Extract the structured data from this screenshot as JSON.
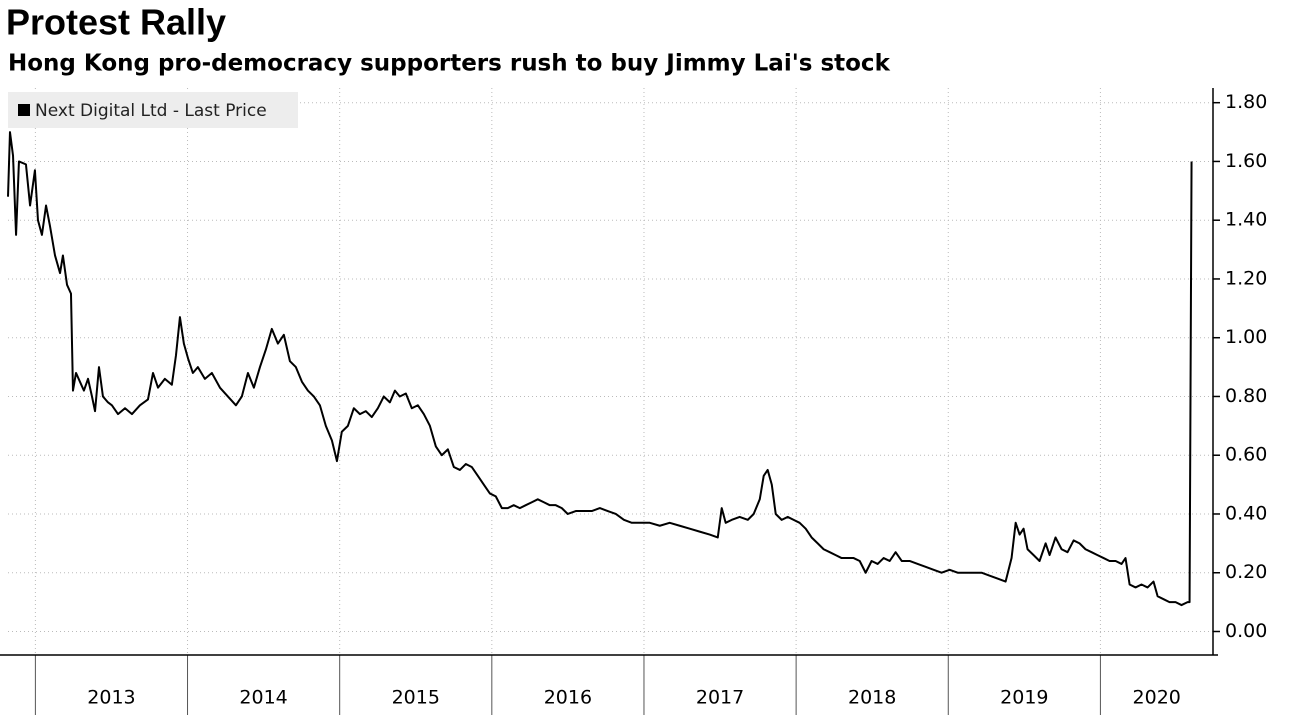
{
  "chart_data": {
    "type": "line",
    "title": "Protest Rally",
    "subtitle": "Hong Kong pro-democracy supporters rush to buy Jimmy Lai's stock",
    "x": [
      2012.82,
      2012.833,
      2012.853,
      2012.873,
      2012.892,
      2012.938,
      2012.965,
      2012.997,
      2013.017,
      2013.043,
      2013.07,
      2013.096,
      2013.129,
      2013.162,
      2013.181,
      2013.208,
      2013.234,
      2013.247,
      2013.267,
      2013.293,
      2013.319,
      2013.346,
      2013.372,
      2013.392,
      2013.418,
      2013.444,
      2013.477,
      2013.503,
      2013.543,
      2013.589,
      2013.635,
      2013.687,
      2013.74,
      2013.773,
      2013.806,
      2013.851,
      2013.897,
      2013.924,
      2013.95,
      2013.976,
      2014.003,
      2014.035,
      2014.068,
      2014.114,
      2014.16,
      2014.213,
      2014.265,
      2014.318,
      2014.357,
      2014.397,
      2014.436,
      2014.476,
      2014.515,
      2014.554,
      2014.594,
      2014.633,
      2014.673,
      2014.712,
      2014.752,
      2014.791,
      2014.83,
      2014.87,
      2014.909,
      2014.949,
      2014.982,
      2015.014,
      2015.054,
      2015.093,
      2015.133,
      2015.172,
      2015.211,
      2015.251,
      2015.29,
      2015.33,
      2015.363,
      2015.395,
      2015.435,
      2015.474,
      2015.514,
      2015.553,
      2015.593,
      2015.632,
      2015.671,
      2015.711,
      2015.75,
      2015.79,
      2015.829,
      2015.868,
      2015.908,
      2015.947,
      2015.987,
      2016.026,
      2016.066,
      2016.105,
      2016.144,
      2016.184,
      2016.223,
      2016.263,
      2016.302,
      2016.342,
      2016.381,
      2016.42,
      2016.46,
      2016.499,
      2016.552,
      2016.604,
      2016.657,
      2016.71,
      2016.762,
      2016.815,
      2016.868,
      2016.92,
      2016.973,
      2017.038,
      2017.104,
      2017.169,
      2017.235,
      2017.301,
      2017.366,
      2017.432,
      2017.485,
      2017.511,
      2017.537,
      2017.577,
      2017.629,
      2017.682,
      2017.721,
      2017.761,
      2017.787,
      2017.813,
      2017.84,
      2017.866,
      2017.905,
      2017.945,
      2017.984,
      2018.023,
      2018.063,
      2018.102,
      2018.142,
      2018.181,
      2018.221,
      2018.26,
      2018.299,
      2018.339,
      2018.378,
      2018.418,
      2018.457,
      2018.496,
      2018.536,
      2018.575,
      2018.615,
      2018.654,
      2018.694,
      2018.746,
      2018.799,
      2018.851,
      2018.904,
      2018.956,
      2019.009,
      2019.062,
      2019.114,
      2019.167,
      2019.219,
      2019.272,
      2019.324,
      2019.377,
      2019.416,
      2019.443,
      2019.469,
      2019.495,
      2019.521,
      2019.561,
      2019.6,
      2019.64,
      2019.666,
      2019.705,
      2019.745,
      2019.784,
      2019.824,
      2019.863,
      2019.902,
      2019.942,
      2019.981,
      2020.021,
      2020.06,
      2020.1,
      2020.139,
      2020.165,
      2020.192,
      2020.231,
      2020.27,
      2020.31,
      2020.349,
      2020.376,
      2020.415,
      2020.454,
      2020.494,
      2020.533,
      2020.573,
      2020.586,
      2020.599
    ],
    "series": [
      {
        "name": "Next Digital Ltd - Last Price",
        "color": "#000000",
        "values": [
          1.48,
          1.7,
          1.62,
          1.35,
          1.6,
          1.59,
          1.45,
          1.57,
          1.4,
          1.35,
          1.45,
          1.38,
          1.28,
          1.22,
          1.28,
          1.18,
          1.15,
          0.82,
          0.88,
          0.85,
          0.82,
          0.86,
          0.8,
          0.75,
          0.9,
          0.8,
          0.78,
          0.77,
          0.74,
          0.76,
          0.74,
          0.77,
          0.79,
          0.88,
          0.83,
          0.86,
          0.84,
          0.94,
          1.07,
          0.98,
          0.93,
          0.88,
          0.9,
          0.86,
          0.88,
          0.83,
          0.8,
          0.77,
          0.8,
          0.88,
          0.83,
          0.9,
          0.96,
          1.03,
          0.98,
          1.01,
          0.92,
          0.9,
          0.85,
          0.82,
          0.8,
          0.77,
          0.7,
          0.65,
          0.58,
          0.68,
          0.7,
          0.76,
          0.74,
          0.75,
          0.73,
          0.76,
          0.8,
          0.78,
          0.82,
          0.8,
          0.81,
          0.76,
          0.77,
          0.74,
          0.7,
          0.63,
          0.6,
          0.62,
          0.56,
          0.55,
          0.57,
          0.56,
          0.53,
          0.5,
          0.47,
          0.46,
          0.42,
          0.42,
          0.43,
          0.42,
          0.43,
          0.44,
          0.45,
          0.44,
          0.43,
          0.43,
          0.42,
          0.4,
          0.41,
          0.41,
          0.41,
          0.42,
          0.41,
          0.4,
          0.38,
          0.37,
          0.37,
          0.37,
          0.36,
          0.37,
          0.36,
          0.35,
          0.34,
          0.33,
          0.32,
          0.42,
          0.37,
          0.38,
          0.39,
          0.38,
          0.4,
          0.45,
          0.53,
          0.55,
          0.5,
          0.4,
          0.38,
          0.39,
          0.38,
          0.37,
          0.35,
          0.32,
          0.3,
          0.28,
          0.27,
          0.26,
          0.25,
          0.25,
          0.25,
          0.24,
          0.2,
          0.24,
          0.23,
          0.25,
          0.24,
          0.27,
          0.24,
          0.24,
          0.23,
          0.22,
          0.21,
          0.2,
          0.21,
          0.2,
          0.2,
          0.2,
          0.2,
          0.19,
          0.18,
          0.17,
          0.25,
          0.37,
          0.33,
          0.35,
          0.28,
          0.26,
          0.24,
          0.3,
          0.26,
          0.32,
          0.28,
          0.27,
          0.31,
          0.3,
          0.28,
          0.27,
          0.26,
          0.25,
          0.24,
          0.24,
          0.23,
          0.25,
          0.16,
          0.15,
          0.16,
          0.15,
          0.17,
          0.12,
          0.11,
          0.1,
          0.1,
          0.09,
          0.1,
          0.1,
          1.6
        ]
      }
    ],
    "xlim": [
      2012.82,
      2020.74
    ],
    "xticks": [
      {
        "value": 2013,
        "label": "2013"
      },
      {
        "value": 2014,
        "label": "2014"
      },
      {
        "value": 2015,
        "label": "2015"
      },
      {
        "value": 2016,
        "label": "2016"
      },
      {
        "value": 2017,
        "label": "2017"
      },
      {
        "value": 2018,
        "label": "2018"
      },
      {
        "value": 2019,
        "label": "2019"
      },
      {
        "value": 2020,
        "label": "2020"
      }
    ],
    "ylim": [
      -0.08,
      1.85
    ],
    "yticks": [
      {
        "value": 0,
        "label": "0.00"
      },
      {
        "value": 0.2,
        "label": "0.20"
      },
      {
        "value": 0.4,
        "label": "0.40"
      },
      {
        "value": 0.6,
        "label": "0.60"
      },
      {
        "value": 0.8,
        "label": "0.80"
      },
      {
        "value": 1,
        "label": "1.00"
      },
      {
        "value": 1.2,
        "label": "1.20"
      },
      {
        "value": 1.4,
        "label": "1.40"
      },
      {
        "value": 1.6,
        "label": "1.60"
      },
      {
        "value": 1.8,
        "label": "1.80"
      }
    ],
    "grid": true,
    "y_axis_side": "right",
    "legend": "upper left"
  }
}
